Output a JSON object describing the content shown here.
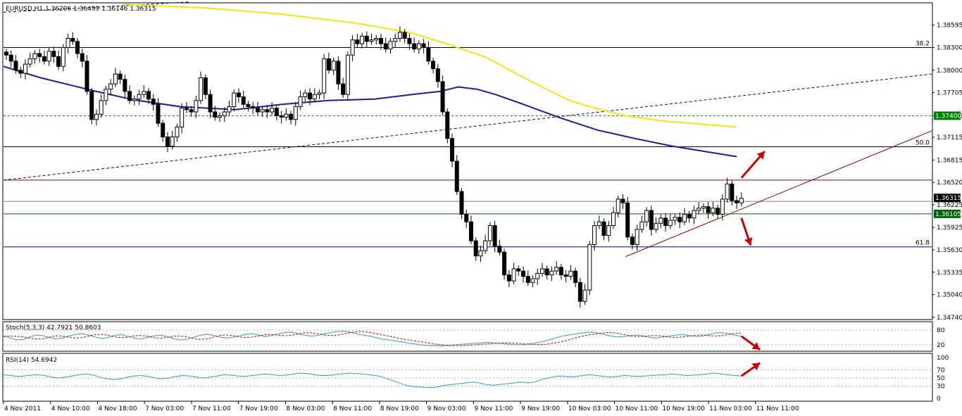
{
  "header": {
    "symbol_line": "EURUSD,H1  1.36206 1.36499 1.36146 1.36315"
  },
  "chart_data": {
    "type": "candlestick",
    "symbol": "EURUSD",
    "timeframe": "H1",
    "ohlc": {
      "open": 1.36206,
      "high": 1.36499,
      "low": 1.36146,
      "close": 1.36315
    },
    "ylim": [
      1.3472,
      1.3888
    ],
    "y_ticks": [
      "1.38595",
      "1.38300",
      "1.38000",
      "1.37705",
      "1.37400",
      "1.37115",
      "1.36815",
      "1.36520",
      "1.36225",
      "1.35925",
      "1.35630",
      "1.35335",
      "1.35040",
      "1.34740"
    ],
    "current_price": "1.36315",
    "levels": [
      {
        "name": "38.2",
        "price": 1.383,
        "color": "#000000"
      },
      {
        "name": "",
        "price": 1.374,
        "color": "#008000",
        "badge": "1.37400"
      },
      {
        "name": "50.0",
        "price": 1.3699,
        "color": "#000000"
      },
      {
        "name": "",
        "price": 1.3655,
        "color": "#8b0000"
      },
      {
        "name": "",
        "price": 1.3627,
        "color": "#808080"
      },
      {
        "name": "",
        "price": 1.36105,
        "color": "#006400",
        "badge": "1.36105"
      },
      {
        "name": "61.8",
        "price": 1.3567,
        "color": "#00008b"
      }
    ],
    "x_ticks": [
      "4 Nov 2011",
      "4 Nov 10:00",
      "4 Nov 18:00",
      "7 Nov 03:00",
      "7 Nov 11:00",
      "7 Nov 19:00",
      "8 Nov 03:00",
      "8 Nov 11:00",
      "8 Nov 19:00",
      "9 Nov 03:00",
      "9 Nov 11:00",
      "9 Nov 19:00",
      "10 Nov 03:00",
      "10 Nov 11:00",
      "10 Nov 19:00",
      "11 Nov 03:00",
      "11 Nov 11:00"
    ],
    "closes": [
      1.382,
      1.3812,
      1.38,
      1.3796,
      1.3808,
      1.3815,
      1.3822,
      1.3818,
      1.3812,
      1.3825,
      1.3818,
      1.3805,
      1.383,
      1.3842,
      1.3838,
      1.3822,
      1.3812,
      1.3772,
      1.3735,
      1.3742,
      1.376,
      1.3775,
      1.3782,
      1.3795,
      1.3788,
      1.3772,
      1.376,
      1.3762,
      1.3768,
      1.3772,
      1.3762,
      1.3755,
      1.373,
      1.3712,
      1.37,
      1.3712,
      1.3725,
      1.375,
      1.3748,
      1.3745,
      1.376,
      1.379,
      1.3768,
      1.3745,
      1.3738,
      1.374,
      1.3745,
      1.3752,
      1.377,
      1.3765,
      1.3755,
      1.3752,
      1.375,
      1.3745,
      1.3748,
      1.3745,
      1.375,
      1.374,
      1.3738,
      1.3742,
      1.3735,
      1.3752,
      1.3765,
      1.377,
      1.3762,
      1.3768,
      1.377,
      1.3815,
      1.38,
      1.3812,
      1.3782,
      1.3768,
      1.382,
      1.384,
      1.3835,
      1.3845,
      1.3838,
      1.384,
      1.3842,
      1.3835,
      1.3828,
      1.3838,
      1.3842,
      1.385,
      1.3842,
      1.3835,
      1.3828,
      1.3835,
      1.383,
      1.3812,
      1.3802,
      1.3785,
      1.3745,
      1.371,
      1.368,
      1.364,
      1.361,
      1.36,
      1.3575,
      1.3555,
      1.3562,
      1.3575,
      1.3595,
      1.3568,
      1.356,
      1.353,
      1.3522,
      1.3538,
      1.3535,
      1.3528,
      1.352,
      1.3525,
      1.3532,
      1.3538,
      1.353,
      1.3535,
      1.354,
      1.353,
      1.3528,
      1.3535,
      1.352,
      1.3495,
      1.351,
      1.357,
      1.3595,
      1.36,
      1.3582,
      1.3595,
      1.3612,
      1.363,
      1.3625,
      1.358,
      1.357,
      1.359,
      1.36,
      1.3615,
      1.359,
      1.3598,
      1.3605,
      1.3595,
      1.3602,
      1.3606,
      1.36,
      1.361,
      1.3605,
      1.3615,
      1.3618,
      1.362,
      1.3612,
      1.3618,
      1.361,
      1.363,
      1.365,
      1.3628,
      1.3625,
      1.3631
    ],
    "ma_yellow": [
      [
        0.13,
        1.3887
      ],
      [
        0.22,
        1.3882
      ],
      [
        0.3,
        1.3874
      ],
      [
        0.38,
        1.3862
      ],
      [
        0.44,
        1.3849
      ],
      [
        0.48,
        1.3834
      ],
      [
        0.52,
        1.3817
      ],
      [
        0.55,
        1.3797
      ],
      [
        0.58,
        1.3778
      ],
      [
        0.61,
        1.376
      ],
      [
        0.64,
        1.3749
      ],
      [
        0.67,
        1.374
      ],
      [
        0.71,
        1.3733
      ],
      [
        0.75,
        1.3729
      ],
      [
        0.79,
        1.3725
      ]
    ],
    "ma_blue": [
      [
        0.0,
        1.3805
      ],
      [
        0.04,
        1.379
      ],
      [
        0.07,
        1.3781
      ],
      [
        0.1,
        1.3772
      ],
      [
        0.14,
        1.3761
      ],
      [
        0.19,
        1.3752
      ],
      [
        0.25,
        1.3748
      ],
      [
        0.3,
        1.3755
      ],
      [
        0.35,
        1.376
      ],
      [
        0.4,
        1.3762
      ],
      [
        0.44,
        1.3768
      ],
      [
        0.47,
        1.3772
      ],
      [
        0.49,
        1.3778
      ],
      [
        0.51,
        1.3775
      ],
      [
        0.53,
        1.3768
      ],
      [
        0.56,
        1.3755
      ],
      [
        0.6,
        1.3737
      ],
      [
        0.64,
        1.3721
      ],
      [
        0.68,
        1.371
      ],
      [
        0.72,
        1.37
      ],
      [
        0.76,
        1.3692
      ],
      [
        0.79,
        1.3686
      ]
    ],
    "trend_lines": [
      {
        "color": "#000080",
        "dashed": true,
        "from": [
          0.0,
          1.38765
        ],
        "to": [
          0.2,
          1.389
        ]
      },
      {
        "color": "#000080",
        "dashed": true,
        "from": [
          0.0,
          1.3655
        ],
        "to": [
          1.0,
          1.3795
        ]
      },
      {
        "color": "#8b0000",
        "dashed": false,
        "from": [
          0.67,
          1.3554
        ],
        "to": [
          1.0,
          1.372
        ]
      }
    ],
    "arrows": [
      {
        "color": "#cc0000",
        "from": [
          0.795,
          1.3658
        ],
        "to": [
          0.82,
          1.3693
        ]
      },
      {
        "color": "#cc0000",
        "from": [
          0.795,
          1.3605
        ],
        "to": [
          0.805,
          1.3569
        ]
      }
    ],
    "indicators": [
      {
        "label": "Stoch(5,3,3) 42.7921 50.8603",
        "ticks": [
          "80",
          "20"
        ],
        "ylim": [
          0,
          100
        ],
        "levels": [
          80,
          20
        ],
        "main_color": "#3399cc",
        "signal_color": "#cc0000",
        "values": [
          55,
          48,
          40,
          42,
          52,
          60,
          58,
          50,
          45,
          48,
          56,
          62,
          66,
          60,
          52,
          46,
          50,
          58,
          62,
          55,
          48,
          44,
          50,
          56,
          60,
          54,
          46,
          40,
          42,
          50,
          58,
          64,
          60,
          52,
          48,
          50,
          56,
          62,
          66,
          60,
          54,
          58,
          64,
          70,
          72,
          66,
          60,
          56,
          58,
          64,
          70,
          74,
          76,
          72,
          66,
          60,
          56,
          50,
          44,
          40,
          36,
          32,
          28,
          24,
          20,
          18,
          17,
          16,
          18,
          20,
          22,
          24,
          26,
          28,
          30,
          28,
          26,
          24,
          22,
          20,
          22,
          26,
          30,
          36,
          44,
          52,
          58,
          62,
          66,
          70,
          72,
          68,
          62,
          56,
          52,
          54,
          58,
          60,
          56,
          50,
          48,
          52,
          56,
          60,
          62,
          58,
          54,
          56,
          62,
          68,
          70,
          66,
          60,
          54
        ],
        "signal_shift": 2
      },
      {
        "label": "RSI(14) 54.6942",
        "ticks": [
          "100",
          "70",
          "50",
          "30",
          "0"
        ],
        "ylim": [
          0,
          100
        ],
        "levels": [
          70,
          50,
          30
        ],
        "main_color": "#3399cc",
        "values": [
          58,
          56,
          54,
          55,
          57,
          58,
          56,
          52,
          50,
          52,
          55,
          58,
          60,
          57,
          52,
          48,
          46,
          48,
          52,
          55,
          56,
          54,
          50,
          48,
          50,
          54,
          56,
          55,
          52,
          50,
          52,
          55,
          58,
          57,
          55,
          54,
          56,
          58,
          60,
          58,
          56,
          57,
          60,
          62,
          61,
          58,
          56,
          56,
          58,
          60,
          62,
          61,
          60,
          58,
          56,
          52,
          46,
          40,
          34,
          30,
          28,
          27,
          26,
          28,
          32,
          34,
          36,
          38,
          40,
          38,
          34,
          32,
          34,
          36,
          38,
          40,
          38,
          40,
          46,
          50,
          54,
          55,
          52,
          54,
          56,
          58,
          56,
          54,
          52,
          54,
          56,
          55,
          54,
          55,
          56,
          57,
          58,
          60,
          58,
          56,
          57,
          58,
          60,
          62,
          60,
          58,
          56,
          55
        ],
        "arrow": {
          "color": "#cc0000",
          "from": [
            0.795,
            55
          ],
          "to": [
            0.815,
            80
          ]
        }
      }
    ],
    "stoch_arrow": {
      "color": "#cc0000",
      "from": [
        0.795,
        55
      ],
      "to": [
        0.815,
        12
      ]
    }
  }
}
